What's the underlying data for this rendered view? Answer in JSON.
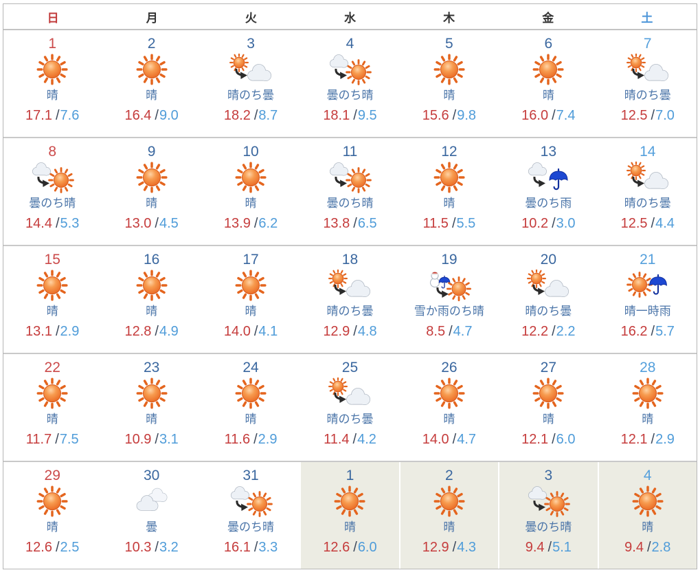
{
  "calendar": {
    "weekday_header": [
      "日",
      "月",
      "火",
      "水",
      "木",
      "金",
      "土"
    ],
    "temp_separator": "/",
    "weeks": [
      [
        {
          "day": "1",
          "icon": "sunny",
          "desc": "晴",
          "high": "17.1",
          "low": "7.6",
          "other_month": false
        },
        {
          "day": "2",
          "icon": "sunny",
          "desc": "晴",
          "high": "16.4",
          "low": "9.0",
          "other_month": false
        },
        {
          "day": "3",
          "icon": "sunny-then-cloudy",
          "desc": "晴のち曇",
          "high": "18.2",
          "low": "8.7",
          "other_month": false
        },
        {
          "day": "4",
          "icon": "cloudy-then-sunny",
          "desc": "曇のち晴",
          "high": "18.1",
          "low": "9.5",
          "other_month": false
        },
        {
          "day": "5",
          "icon": "sunny",
          "desc": "晴",
          "high": "15.6",
          "low": "9.8",
          "other_month": false
        },
        {
          "day": "6",
          "icon": "sunny",
          "desc": "晴",
          "high": "16.0",
          "low": "7.4",
          "other_month": false
        },
        {
          "day": "7",
          "icon": "sunny-then-cloudy",
          "desc": "晴のち曇",
          "high": "12.5",
          "low": "7.0",
          "other_month": false
        }
      ],
      [
        {
          "day": "8",
          "icon": "cloudy-then-sunny",
          "desc": "曇のち晴",
          "high": "14.4",
          "low": "5.3",
          "other_month": false
        },
        {
          "day": "9",
          "icon": "sunny",
          "desc": "晴",
          "high": "13.0",
          "low": "4.5",
          "other_month": false
        },
        {
          "day": "10",
          "icon": "sunny",
          "desc": "晴",
          "high": "13.9",
          "low": "6.2",
          "other_month": false
        },
        {
          "day": "11",
          "icon": "cloudy-then-sunny",
          "desc": "曇のち晴",
          "high": "13.8",
          "low": "6.5",
          "other_month": false
        },
        {
          "day": "12",
          "icon": "sunny",
          "desc": "晴",
          "high": "11.5",
          "low": "5.5",
          "other_month": false
        },
        {
          "day": "13",
          "icon": "cloudy-then-rain",
          "desc": "曇のち雨",
          "high": "10.2",
          "low": "3.0",
          "other_month": false
        },
        {
          "day": "14",
          "icon": "sunny-then-cloudy",
          "desc": "晴のち曇",
          "high": "12.5",
          "low": "4.4",
          "other_month": false
        }
      ],
      [
        {
          "day": "15",
          "icon": "sunny",
          "desc": "晴",
          "high": "13.1",
          "low": "2.9",
          "other_month": false
        },
        {
          "day": "16",
          "icon": "sunny",
          "desc": "晴",
          "high": "12.8",
          "low": "4.9",
          "other_month": false
        },
        {
          "day": "17",
          "icon": "sunny",
          "desc": "晴",
          "high": "14.0",
          "low": "4.1",
          "other_month": false
        },
        {
          "day": "18",
          "icon": "sunny-then-cloudy",
          "desc": "晴のち曇",
          "high": "12.9",
          "low": "4.8",
          "other_month": false
        },
        {
          "day": "19",
          "icon": "snow-or-rain-then-sunny",
          "desc": "雪か雨のち晴",
          "high": "8.5",
          "low": "4.7",
          "other_month": false
        },
        {
          "day": "20",
          "icon": "sunny-then-cloudy",
          "desc": "晴のち曇",
          "high": "12.2",
          "low": "2.2",
          "other_month": false
        },
        {
          "day": "21",
          "icon": "sunny-brief-rain",
          "desc": "晴一時雨",
          "high": "16.2",
          "low": "5.7",
          "other_month": false
        }
      ],
      [
        {
          "day": "22",
          "icon": "sunny",
          "desc": "晴",
          "high": "11.7",
          "low": "7.5",
          "other_month": false
        },
        {
          "day": "23",
          "icon": "sunny",
          "desc": "晴",
          "high": "10.9",
          "low": "3.1",
          "other_month": false
        },
        {
          "day": "24",
          "icon": "sunny",
          "desc": "晴",
          "high": "11.6",
          "low": "2.9",
          "other_month": false
        },
        {
          "day": "25",
          "icon": "sunny-then-cloudy",
          "desc": "晴のち曇",
          "high": "11.4",
          "low": "4.2",
          "other_month": false
        },
        {
          "day": "26",
          "icon": "sunny",
          "desc": "晴",
          "high": "14.0",
          "low": "4.7",
          "other_month": false
        },
        {
          "day": "27",
          "icon": "sunny",
          "desc": "晴",
          "high": "12.1",
          "low": "6.0",
          "other_month": false
        },
        {
          "day": "28",
          "icon": "sunny",
          "desc": "晴",
          "high": "12.1",
          "low": "2.9",
          "other_month": false
        }
      ],
      [
        {
          "day": "29",
          "icon": "sunny",
          "desc": "晴",
          "high": "12.6",
          "low": "2.5",
          "other_month": false
        },
        {
          "day": "30",
          "icon": "cloudy",
          "desc": "曇",
          "high": "10.3",
          "low": "3.2",
          "other_month": false
        },
        {
          "day": "31",
          "icon": "cloudy-then-sunny",
          "desc": "曇のち晴",
          "high": "16.1",
          "low": "3.3",
          "other_month": false
        },
        {
          "day": "1",
          "icon": "sunny",
          "desc": "晴",
          "high": "12.6",
          "low": "6.0",
          "other_month": true
        },
        {
          "day": "2",
          "icon": "sunny",
          "desc": "晴",
          "high": "12.9",
          "low": "4.3",
          "other_month": true
        },
        {
          "day": "3",
          "icon": "cloudy-then-sunny",
          "desc": "曇のち晴",
          "high": "9.4",
          "low": "5.1",
          "other_month": true
        },
        {
          "day": "4",
          "icon": "sunny",
          "desc": "晴",
          "high": "9.4",
          "low": "2.8",
          "other_month": true
        }
      ]
    ]
  },
  "colors": {
    "header_sunday": "#c23c3c",
    "header_weekday": "#333333",
    "header_saturday": "#4e96d9",
    "day_sunday": "#cb4a4a",
    "day_weekday": "#3a679f",
    "day_saturday": "#55a0dc",
    "weather_text": "#4a74a8",
    "high_temp": "#c53c3c",
    "low_temp": "#4f9cd9",
    "temp_slash": "#3d4a5c",
    "other_month_bg": "#ecece3",
    "sun_orange": "#e8611c",
    "sun_ray": "#e4651e",
    "cloud_fill": "#edf1f6",
    "cloud_stroke": "#a6afbb",
    "umbrella_blue": "#1d48d2",
    "umbrella_dark": "#12309e",
    "arrow_black": "#2b2b2b",
    "snowman_white": "#ffffff",
    "hat_red": "#cc3b2f"
  }
}
